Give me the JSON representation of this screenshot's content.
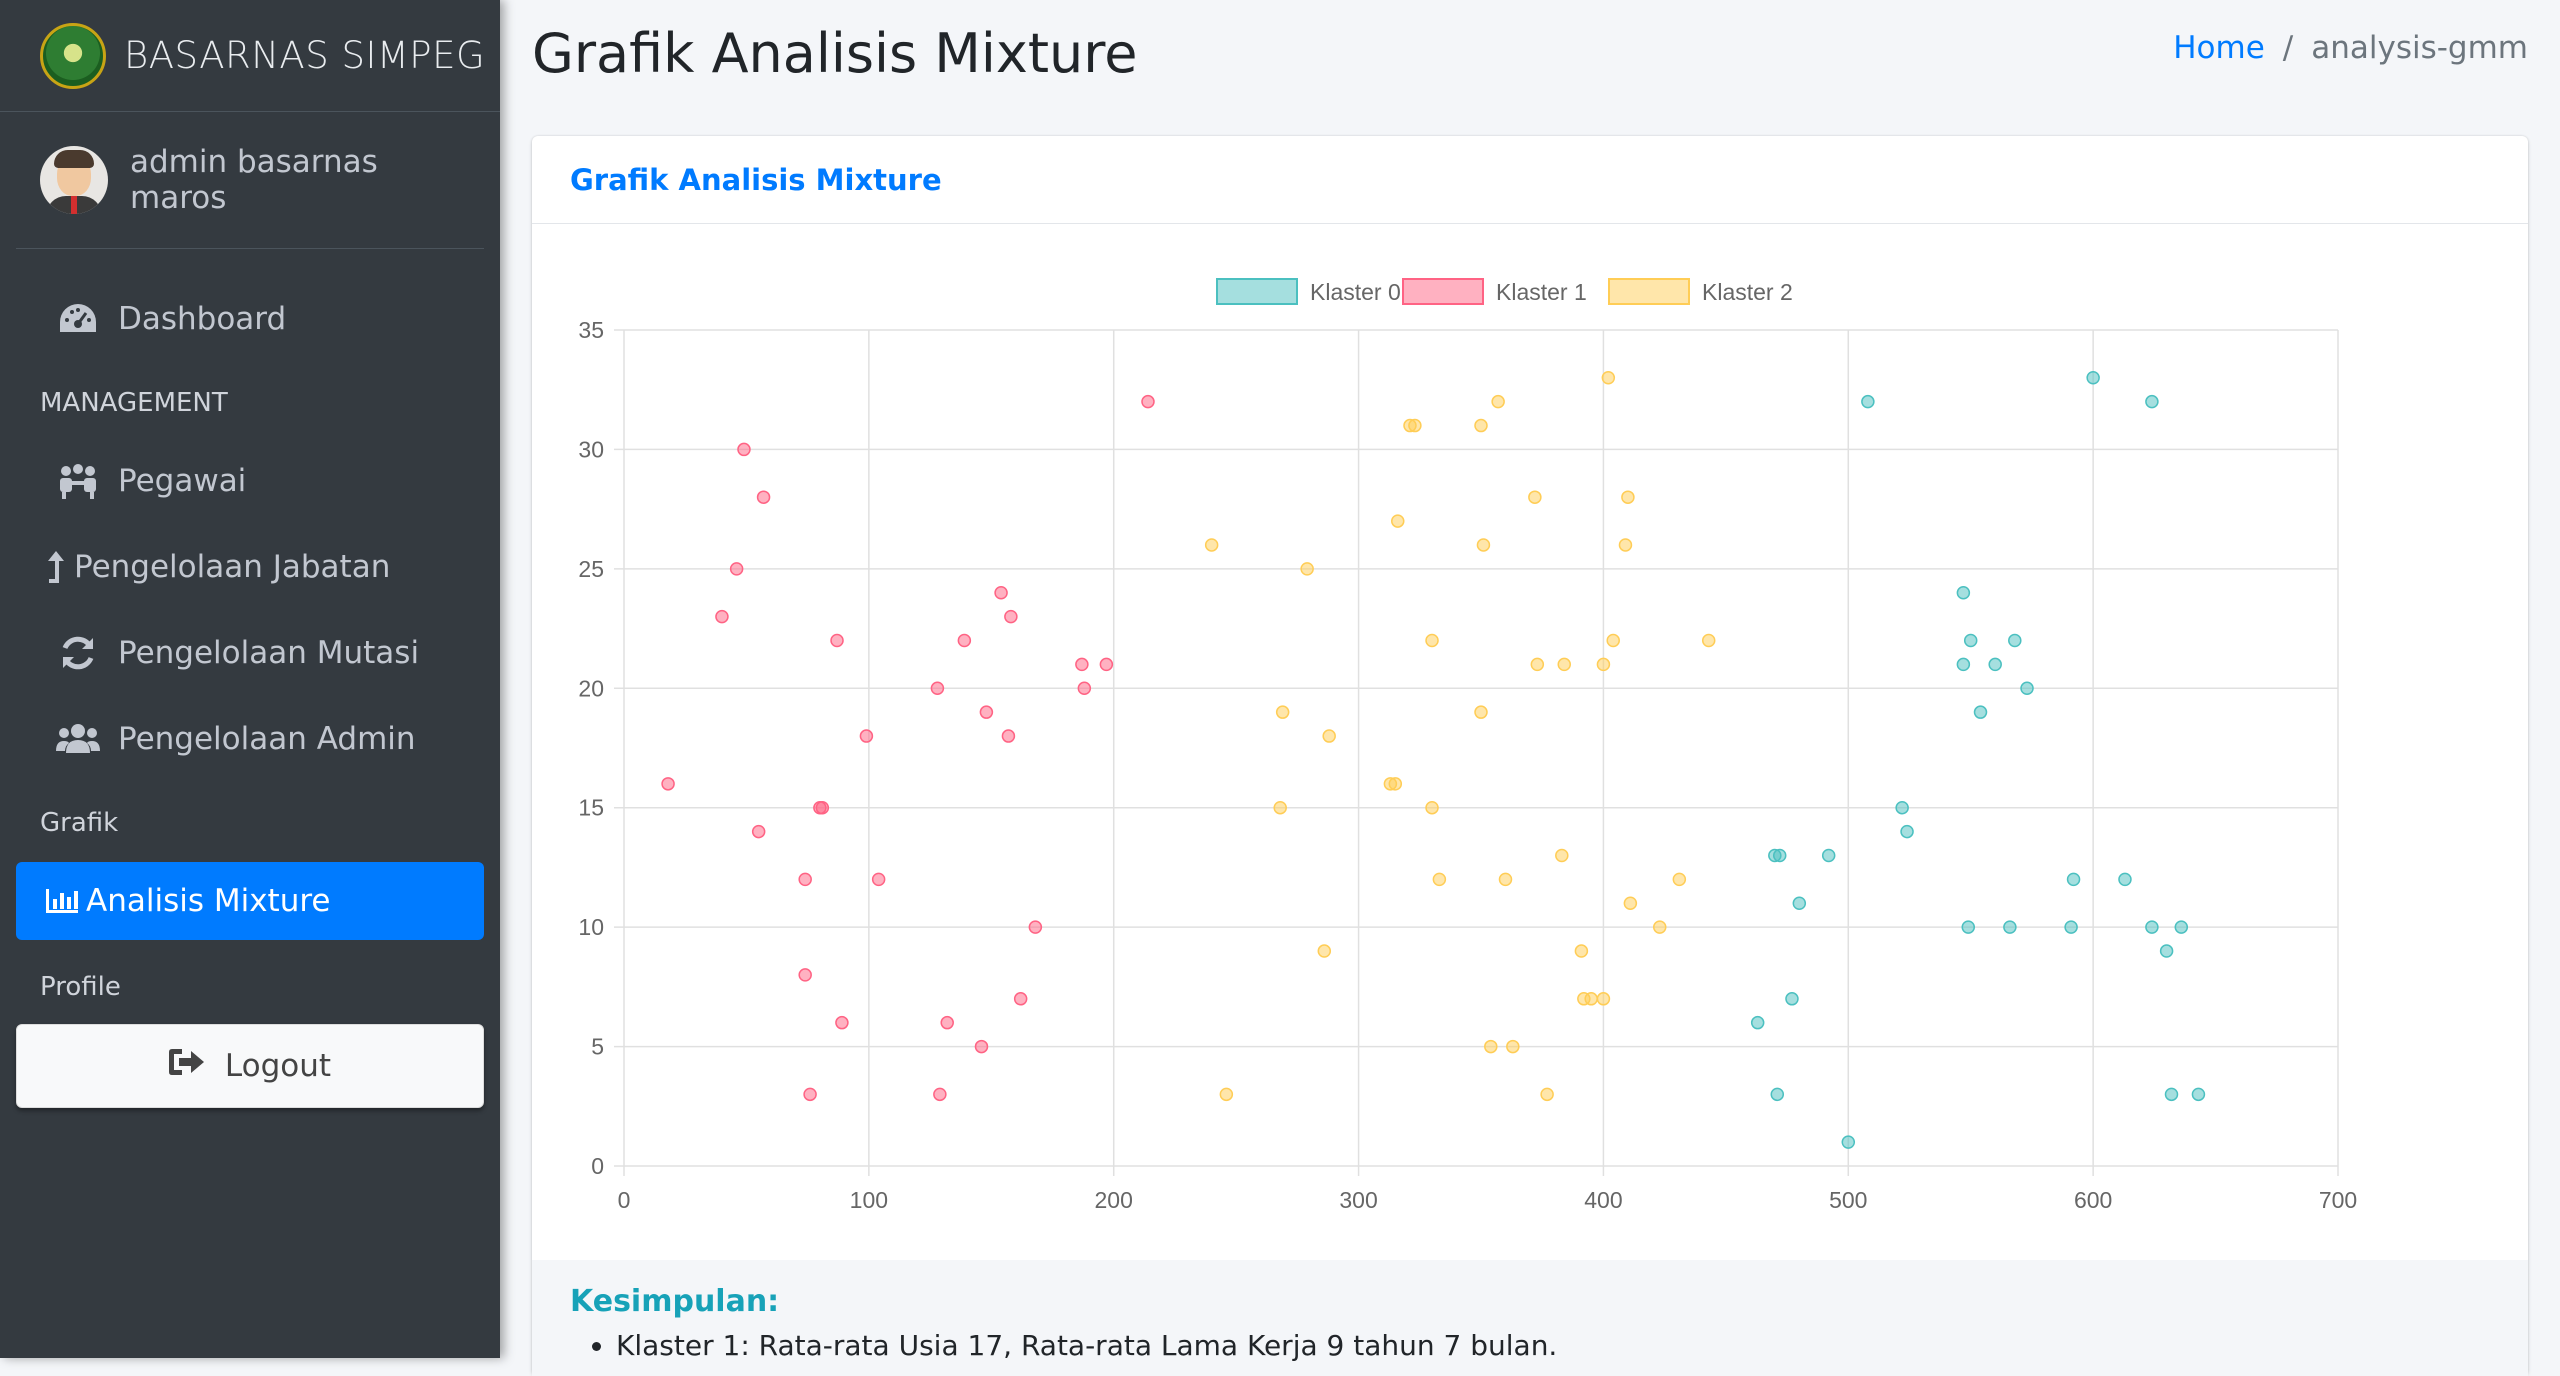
{
  "brand": {
    "title": "BASARNAS SIMPEG"
  },
  "user": {
    "name": "admin basarnas maros"
  },
  "sidebar": {
    "dashboard": "Dashboard",
    "management_header": "MANAGEMENT",
    "pegawai": "Pegawai",
    "jabatan": "Pengelolaan Jabatan",
    "mutasi": "Pengelolaan Mutasi",
    "admin": "Pengelolaan Admin",
    "grafik_header": "Grafik",
    "analisis": "Analisis Mixture",
    "profile_header": "Profile",
    "logout": "Logout"
  },
  "page": {
    "title": "Grafik Analisis Mixture",
    "breadcrumb_home": "Home",
    "breadcrumb_sep": "/",
    "breadcrumb_current": "analysis-gmm"
  },
  "card": {
    "title": "Grafik Analisis Mixture",
    "conclusion_title": "Kesimpulan:",
    "conclusion_items": [
      "Klaster 1: Rata-rata Usia 17, Rata-rata Lama Kerja 9 tahun 7 bulan."
    ]
  },
  "chart_data": {
    "type": "scatter",
    "xlim": [
      0,
      700
    ],
    "ylim": [
      0,
      35
    ],
    "xticks": [
      0,
      100,
      200,
      300,
      400,
      500,
      600,
      700
    ],
    "yticks": [
      0,
      5,
      10,
      15,
      20,
      25,
      30,
      35
    ],
    "grid": true,
    "legend_position": "top",
    "series": [
      {
        "name": "Klaster 0",
        "color": "#4bc0c0",
        "points": [
          [
            508,
            32
          ],
          [
            600,
            33
          ],
          [
            624,
            32
          ],
          [
            547,
            24
          ],
          [
            550,
            22
          ],
          [
            568,
            22
          ],
          [
            547,
            21
          ],
          [
            560,
            21
          ],
          [
            573,
            20
          ],
          [
            554,
            19
          ],
          [
            522,
            15
          ],
          [
            524,
            14
          ],
          [
            470,
            13
          ],
          [
            472,
            13
          ],
          [
            492,
            13
          ],
          [
            480,
            11
          ],
          [
            592,
            12
          ],
          [
            613,
            12
          ],
          [
            549,
            10
          ],
          [
            566,
            10
          ],
          [
            591,
            10
          ],
          [
            624,
            10
          ],
          [
            636,
            10
          ],
          [
            630,
            9
          ],
          [
            477,
            7
          ],
          [
            463,
            6
          ],
          [
            471,
            3
          ],
          [
            632,
            3
          ],
          [
            643,
            3
          ],
          [
            500,
            1
          ]
        ]
      },
      {
        "name": "Klaster 1",
        "color": "#ff6384",
        "points": [
          [
            214,
            32
          ],
          [
            49,
            30
          ],
          [
            57,
            28
          ],
          [
            46,
            25
          ],
          [
            40,
            23
          ],
          [
            154,
            24
          ],
          [
            158,
            23
          ],
          [
            87,
            22
          ],
          [
            139,
            22
          ],
          [
            187,
            21
          ],
          [
            197,
            21
          ],
          [
            128,
            20
          ],
          [
            188,
            20
          ],
          [
            148,
            19
          ],
          [
            99,
            18
          ],
          [
            157,
            18
          ],
          [
            18,
            16
          ],
          [
            81,
            15
          ],
          [
            80,
            15
          ],
          [
            55,
            14
          ],
          [
            74,
            12
          ],
          [
            104,
            12
          ],
          [
            168,
            10
          ],
          [
            74,
            8
          ],
          [
            162,
            7
          ],
          [
            89,
            6
          ],
          [
            132,
            6
          ],
          [
            146,
            5
          ],
          [
            76,
            3
          ],
          [
            129,
            3
          ]
        ]
      },
      {
        "name": "Klaster 2",
        "color": "#ffcd56",
        "points": [
          [
            402,
            33
          ],
          [
            357,
            32
          ],
          [
            321,
            31
          ],
          [
            323,
            31
          ],
          [
            350,
            31
          ],
          [
            372,
            28
          ],
          [
            410,
            28
          ],
          [
            316,
            27
          ],
          [
            351,
            26
          ],
          [
            409,
            26
          ],
          [
            240,
            26
          ],
          [
            279,
            25
          ],
          [
            330,
            22
          ],
          [
            404,
            22
          ],
          [
            443,
            22
          ],
          [
            373,
            21
          ],
          [
            384,
            21
          ],
          [
            400,
            21
          ],
          [
            269,
            19
          ],
          [
            350,
            19
          ],
          [
            288,
            18
          ],
          [
            313,
            16
          ],
          [
            315,
            16
          ],
          [
            268,
            15
          ],
          [
            330,
            15
          ],
          [
            383,
            13
          ],
          [
            333,
            12
          ],
          [
            360,
            12
          ],
          [
            431,
            12
          ],
          [
            411,
            11
          ],
          [
            423,
            10
          ],
          [
            286,
            9
          ],
          [
            391,
            9
          ],
          [
            392,
            7
          ],
          [
            395,
            7
          ],
          [
            400,
            7
          ],
          [
            354,
            5
          ],
          [
            363,
            5
          ],
          [
            246,
            3
          ],
          [
            377,
            3
          ]
        ]
      }
    ]
  }
}
